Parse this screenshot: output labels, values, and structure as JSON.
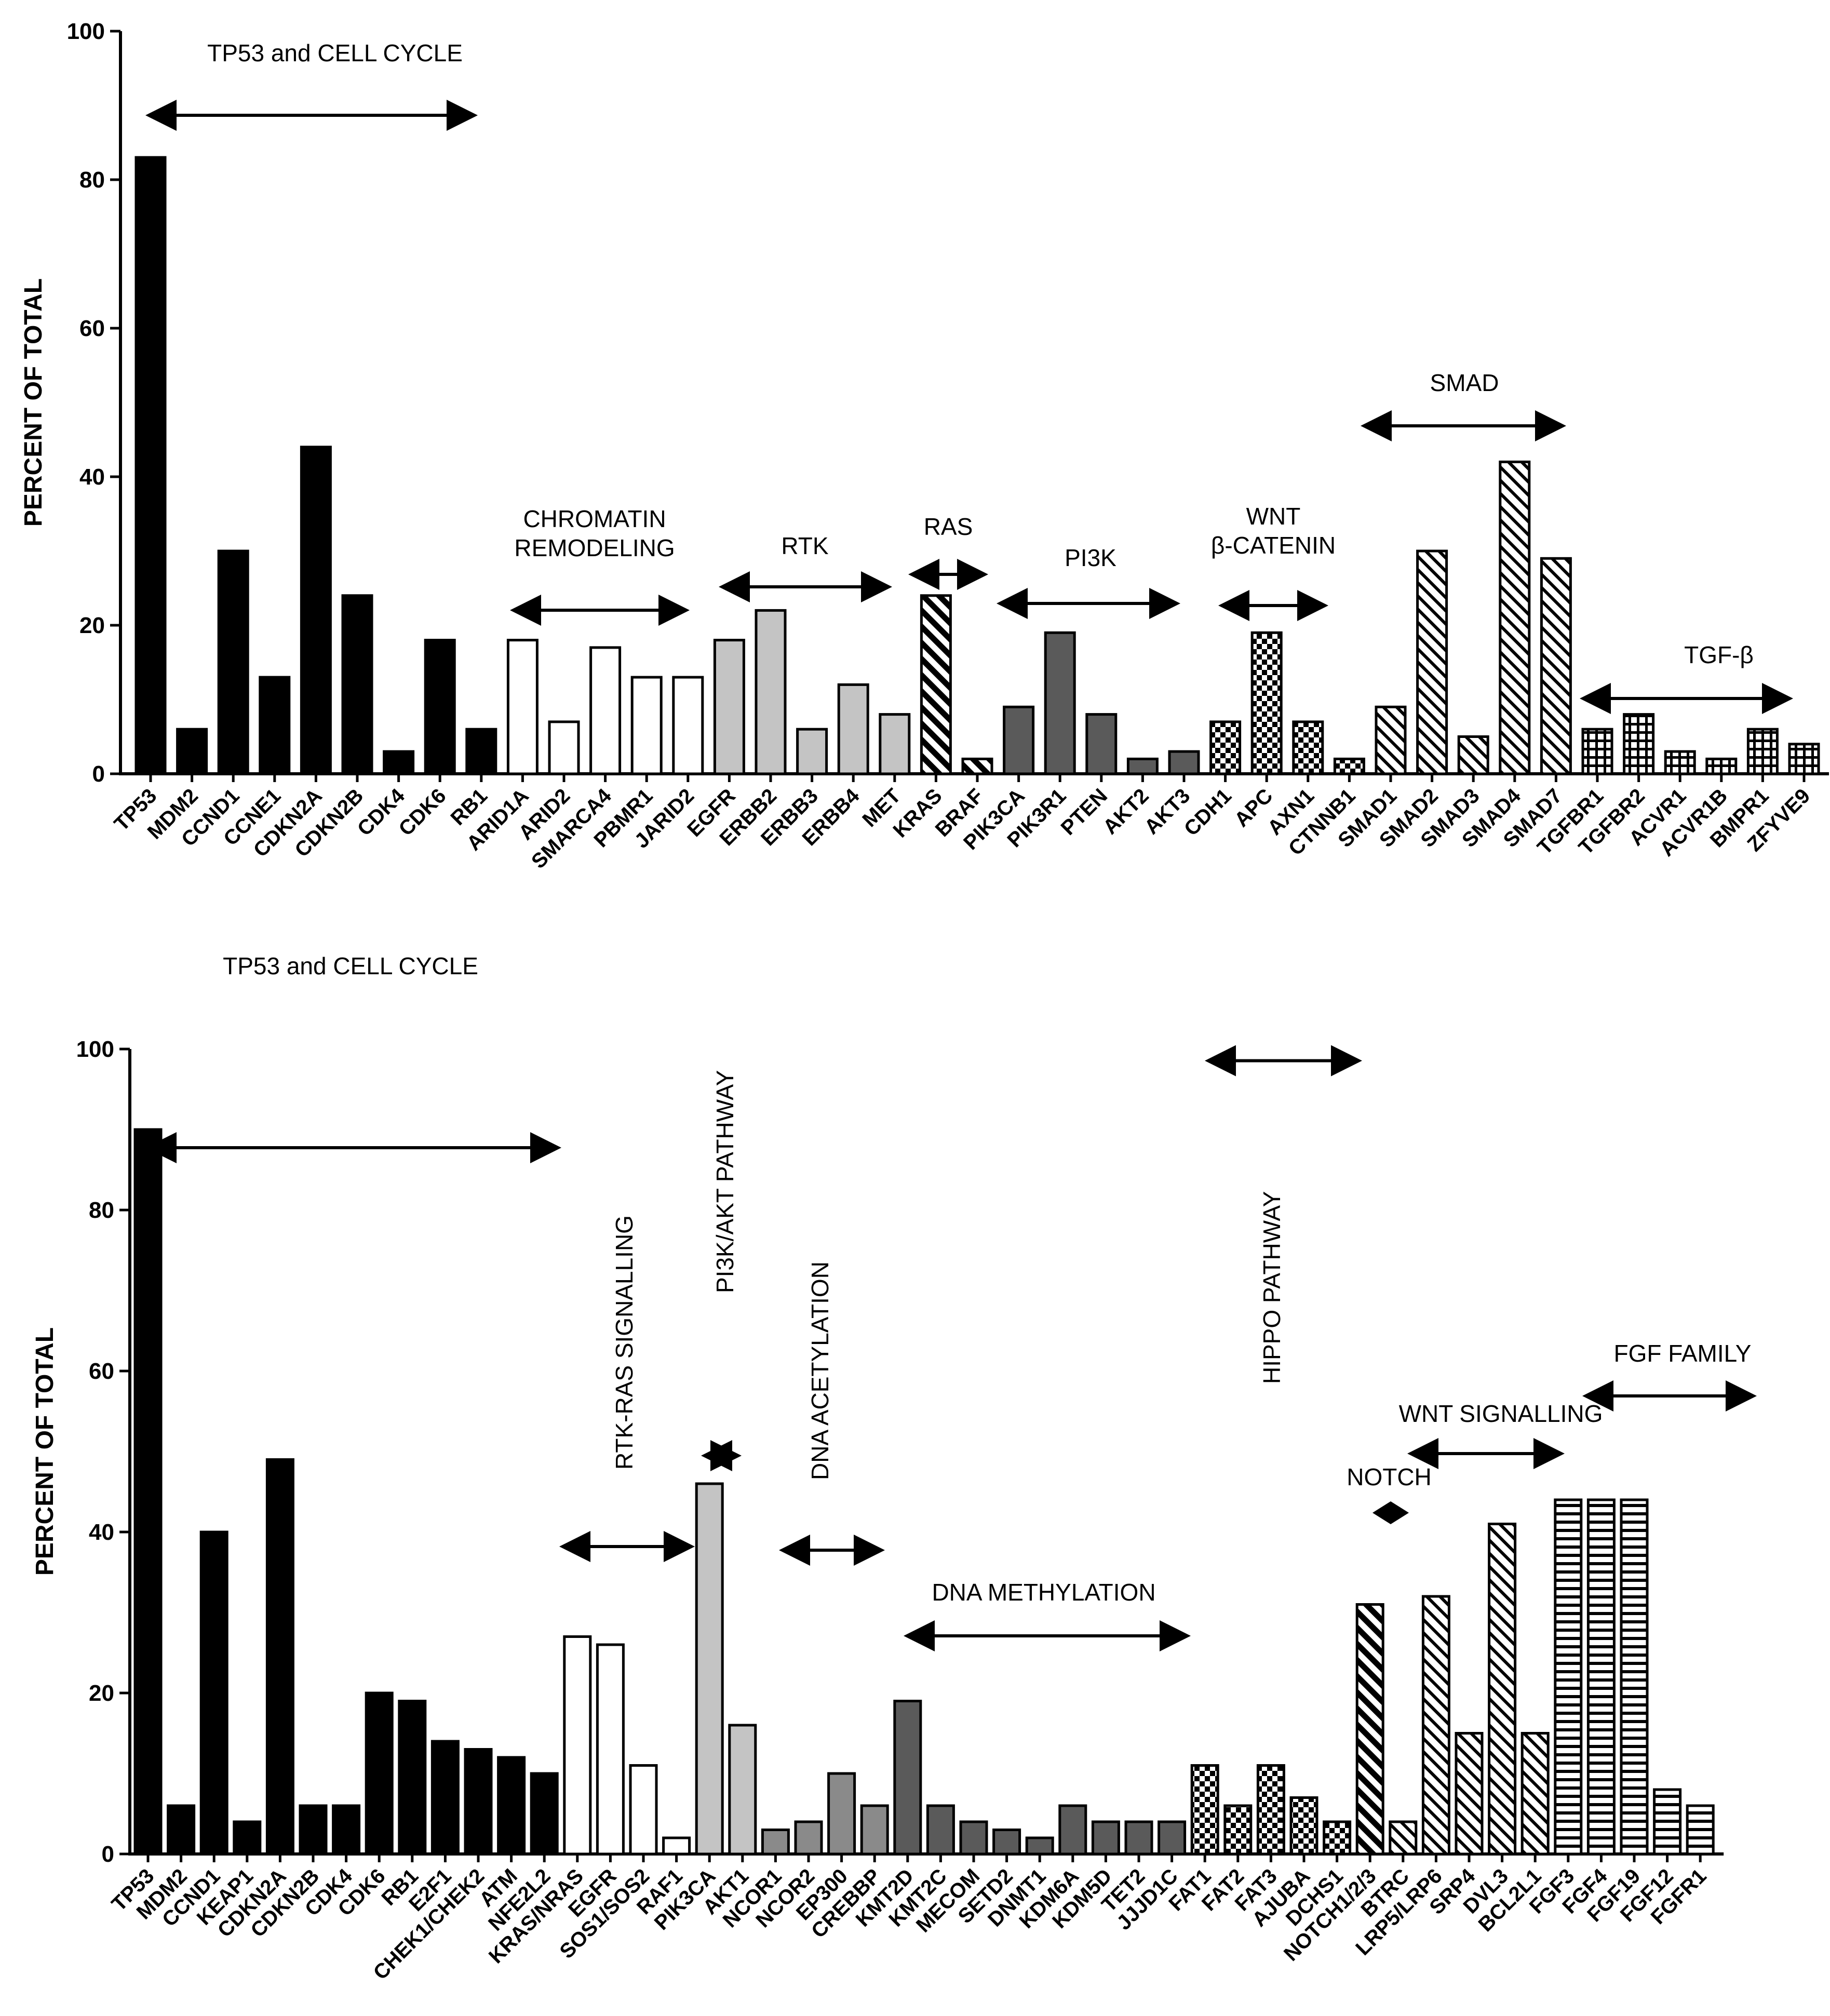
{
  "figure": {
    "description_panels": 2
  },
  "chart_data": [
    {
      "type": "bar",
      "ylabel": "PERCENT OF TOTAL",
      "ylim": [
        0,
        100
      ],
      "yticks": [
        0,
        20,
        40,
        60,
        80,
        100
      ],
      "categories": [
        "TP53",
        "MDM2",
        "CCND1",
        "CCNE1",
        "CDKN2A",
        "CDKN2B",
        "CDK4",
        "CDK6",
        "RB1",
        "ARID1A",
        "ARID2",
        "SMARCA4",
        "PBMR1",
        "JARID2",
        "EGFR",
        "ERBB2",
        "ERBB3",
        "ERBB4",
        "MET",
        "KRAS",
        "BRAF",
        "PIK3CA",
        "PIK3R1",
        "PTEN",
        "AKT2",
        "AKT3",
        "CDH1",
        "APC",
        "AXN1",
        "CTNNB1",
        "SMAD1",
        "SMAD2",
        "SMAD3",
        "SMAD4",
        "SMAD7",
        "TGFBR1",
        "TGFBR2",
        "ACVR1",
        "ACVR1B",
        "BMPR1",
        "ZFYVE9"
      ],
      "values": [
        83,
        6,
        30,
        13,
        44,
        24,
        3,
        18,
        6,
        18,
        7,
        17,
        13,
        13,
        18,
        22,
        6,
        12,
        8,
        24,
        2,
        9,
        19,
        8,
        2,
        3,
        7,
        19,
        7,
        2,
        9,
        30,
        5,
        42,
        29,
        6,
        8,
        3,
        2,
        6,
        4
      ],
      "groups": [
        {
          "label": "TP53 and CELL CYCLE",
          "start": 0,
          "end": 8,
          "fill": "solid-black"
        },
        {
          "label": "CHROMATIN REMODELING",
          "start": 9,
          "end": 13,
          "fill": "white"
        },
        {
          "label": "RTK",
          "start": 14,
          "end": 18,
          "fill": "light-gray"
        },
        {
          "label": "RAS",
          "start": 19,
          "end": 20,
          "fill": "diagonal-stripes"
        },
        {
          "label": "PI3K",
          "start": 21,
          "end": 25,
          "fill": "dark-gray"
        },
        {
          "label": "WNT β-CATENIN",
          "start": 26,
          "end": 29,
          "fill": "checkered"
        },
        {
          "label": "SMAD",
          "start": 30,
          "end": 34,
          "fill": "fine-diagonal"
        },
        {
          "label": "TGF-β",
          "start": 35,
          "end": 40,
          "fill": "grid"
        }
      ]
    },
    {
      "type": "bar",
      "ylabel": "PERCENT OF TOTAL",
      "ylim": [
        0,
        100
      ],
      "yticks": [
        0,
        20,
        40,
        60,
        80,
        100
      ],
      "categories": [
        "TP53",
        "MDM2",
        "CCND1",
        "KEAP1",
        "CDKN2A",
        "CDKN2B",
        "CDK4",
        "CDK6",
        "RB1",
        "E2F1",
        "CHEK1/CHEK2",
        "ATM",
        "NFE2L2",
        "KRAS/NRAS",
        "EGFR",
        "SOS1/SOS2",
        "RAF1",
        "PIK3CA",
        "AKT1",
        "NCOR1",
        "NCOR2",
        "EP300",
        "CREBBP",
        "KMT2D",
        "KMT2C",
        "MECOM",
        "SETD2",
        "DNMT1",
        "KDM6A",
        "KDM5D",
        "TET2",
        "JJJD1C",
        "FAT1",
        "FAT2",
        "FAT3",
        "AJUBA",
        "DCHS1",
        "NOTCH1/2/3",
        "BTRC",
        "LRP5/LRP6",
        "SRP4",
        "DVL3",
        "BCL2L1",
        "FGF3",
        "FGF4",
        "FGF19",
        "FGF12",
        "FGFR1"
      ],
      "values": [
        90,
        6,
        40,
        4,
        49,
        6,
        6,
        20,
        19,
        14,
        13,
        12,
        10,
        27,
        26,
        11,
        2,
        46,
        16,
        3,
        4,
        10,
        6,
        19,
        6,
        4,
        3,
        2,
        6,
        4,
        4,
        4,
        11,
        6,
        11,
        7,
        4,
        31,
        4,
        32,
        15,
        41,
        15,
        44,
        44,
        44,
        8,
        6
      ],
      "groups": [
        {
          "label": "TP53 and CELL CYCLE",
          "start": 0,
          "end": 12,
          "fill": "solid-black"
        },
        {
          "label": "RTK-RAS SIGNALLING",
          "start": 13,
          "end": 16,
          "fill": "white"
        },
        {
          "label": "PI3K/AKT PATHWAY",
          "start": 17,
          "end": 18,
          "fill": "light-gray"
        },
        {
          "label": "DNA ACETYLATION",
          "start": 19,
          "end": 22,
          "fill": "mid-gray"
        },
        {
          "label": "DNA METHYLATION",
          "start": 23,
          "end": 31,
          "fill": "dark-gray"
        },
        {
          "label": "HIPPO PATHWAY",
          "start": 32,
          "end": 36,
          "fill": "checkered"
        },
        {
          "label": "NOTCH",
          "start": 37,
          "end": 37,
          "fill": "diagonal-stripes"
        },
        {
          "label": "WNT SIGNALLING",
          "start": 38,
          "end": 42,
          "fill": "fine-diagonal"
        },
        {
          "label": "FGF FAMILY",
          "start": 43,
          "end": 47,
          "fill": "horizontal-stripes"
        }
      ]
    }
  ]
}
